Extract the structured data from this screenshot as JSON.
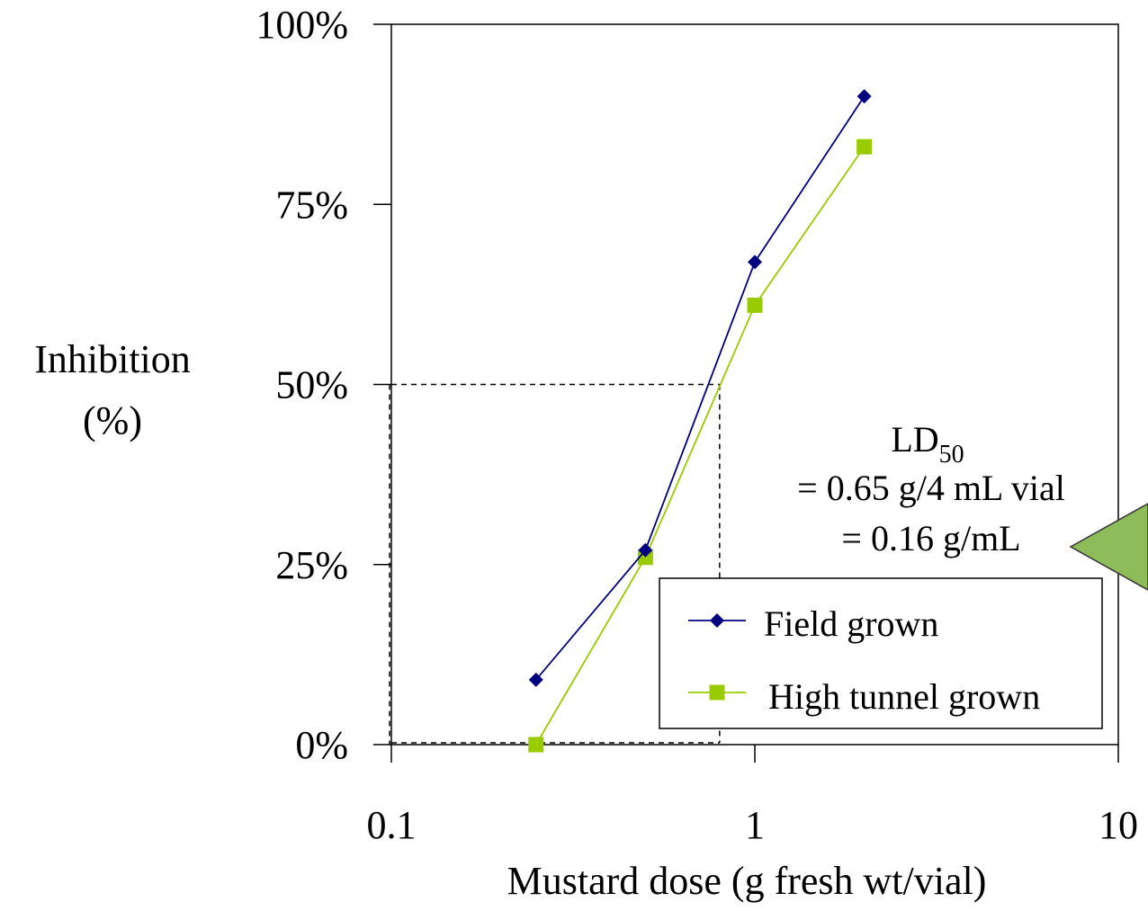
{
  "chart_data": {
    "type": "line",
    "xscale": "log",
    "xlim": [
      0.1,
      10
    ],
    "ylim": [
      0,
      100
    ],
    "x_ticks": [
      0.1,
      1,
      10
    ],
    "x_tick_labels": [
      "0.1",
      "1",
      "10"
    ],
    "y_ticks": [
      0,
      25,
      50,
      75,
      100
    ],
    "y_tick_labels": [
      "0%",
      "25%",
      "50%",
      "75%",
      "100%"
    ],
    "xlabel": "Mustard dose (g fresh wt/vial)",
    "ylabel_line1": "Inhibition",
    "ylabel_line2": "(%)",
    "series": [
      {
        "name": "Field grown",
        "color": "#000080",
        "marker": "diamond",
        "x": [
          0.25,
          0.5,
          1,
          2
        ],
        "y": [
          9,
          27,
          67,
          90
        ]
      },
      {
        "name": "High tunnel grown",
        "color": "#99cc00",
        "marker": "square",
        "x": [
          0.25,
          0.5,
          1,
          2
        ],
        "y": [
          0,
          26,
          61,
          83
        ]
      }
    ],
    "reference_lines": {
      "x": 0.8,
      "y": 50,
      "style": "dashed"
    },
    "annotation": {
      "main": "LD",
      "subscript": "50",
      "line2": "= 0.65 g/4 mL vial",
      "line3": "= 0.16 g/mL"
    },
    "legend_position": "bottom-right",
    "arrow_color": "#8fbc5a"
  }
}
